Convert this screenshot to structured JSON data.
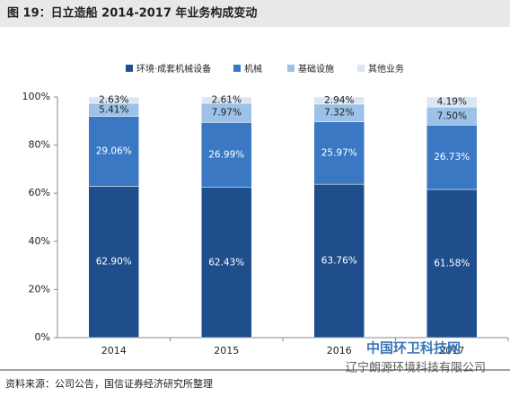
{
  "chart_data": {
    "type": "stacked_bar",
    "title": "图 19：日立造船 2014-2017 年业务构成变动",
    "source": "资料来源：公司公告，国信证券经济研究所整理",
    "categories": [
      "2014",
      "2015",
      "2016",
      "2017"
    ],
    "series": [
      {
        "name": "环境·成套机械设备",
        "color": "#1f4e8c",
        "values": [
          62.9,
          62.43,
          63.76,
          61.58
        ],
        "value_labels": [
          "62.90%",
          "62.43%",
          "63.76%",
          "61.58%"
        ]
      },
      {
        "name": "机械",
        "color": "#3a78c4",
        "values": [
          29.06,
          26.99,
          25.97,
          26.73
        ],
        "value_labels": [
          "29.06%",
          "26.99%",
          "25.97%",
          "26.73%"
        ]
      },
      {
        "name": "基础设施",
        "color": "#9cc2e8",
        "values": [
          5.41,
          7.97,
          7.32,
          7.5
        ],
        "value_labels": [
          "5.41%",
          "7.97%",
          "7.32%",
          "7.50%"
        ]
      },
      {
        "name": "其他业务",
        "color": "#dbe6f3",
        "values": [
          2.63,
          2.61,
          2.94,
          4.19
        ],
        "value_labels": [
          "2.63%",
          "2.61%",
          "2.94%",
          "4.19%"
        ]
      }
    ],
    "ylim": [
      0,
      100
    ],
    "yticks": [
      {
        "value": 0,
        "label": "0%"
      },
      {
        "value": 20,
        "label": "20%"
      },
      {
        "value": 40,
        "label": "40%"
      },
      {
        "value": 60,
        "label": "60%"
      },
      {
        "value": 80,
        "label": "80%"
      },
      {
        "value": 100,
        "label": "100%"
      }
    ],
    "legend": "top"
  },
  "watermark": [
    "中国环卫科技网",
    "辽宁朗源环境科技有限公司"
  ]
}
